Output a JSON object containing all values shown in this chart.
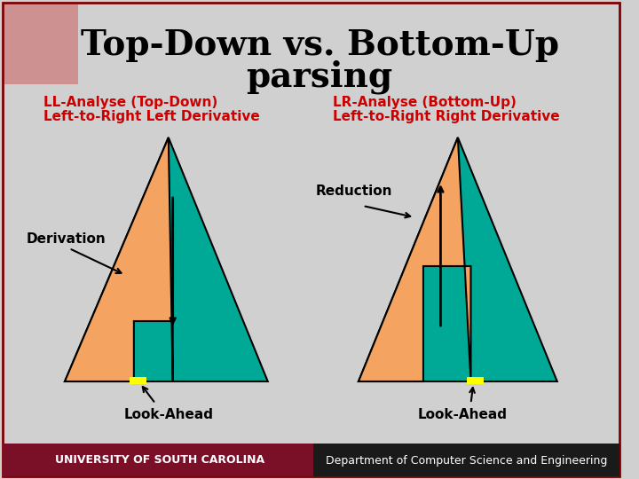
{
  "title_line1": "Top-Down vs. Bottom-Up",
  "title_line2": "parsing",
  "title_color": "#000000",
  "title_fontsize": 28,
  "bg_color": "#d0d0d0",
  "border_color": "#800000",
  "ll_label1": "LL-Analyse (Top-Down)",
  "ll_label2": "Left-to-Right Left Derivative",
  "lr_label1": "LR-Analyse (Bottom-Up)",
  "lr_label2": "Left-to-Right Right Derivative",
  "label_color": "#cc0000",
  "reduction_label": "Reduction",
  "derivation_label": "Derivation",
  "lookahead_label": "Look-Ahead",
  "teal_color": "#00a896",
  "peach_color": "#f4a460",
  "yellow_color": "#ffff00",
  "arrow_color": "#000000",
  "footer_left_bg": "#7a1028",
  "footer_left_text": "UNIVERSITY OF SOUTH CAROLINA",
  "footer_right_bg": "#1a1a1a",
  "footer_right_text": "Department of Computer Science and Engineering"
}
